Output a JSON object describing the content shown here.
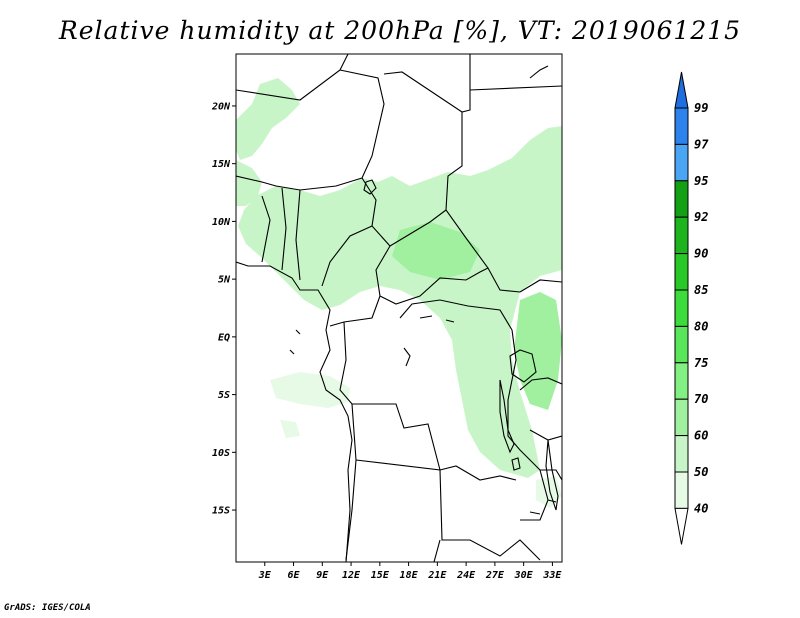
{
  "title": "Relative humidity at 200hPa [%], VT: 2019061215",
  "credit": "GrADS: IGES/COLA",
  "map": {
    "lat_range": [
      -19.5,
      24.5
    ],
    "lon_range": [
      0,
      34
    ],
    "lat_ticks": [
      {
        "value": 20,
        "label": "20N"
      },
      {
        "value": 15,
        "label": "15N"
      },
      {
        "value": 10,
        "label": "10N"
      },
      {
        "value": 5,
        "label": "5N"
      },
      {
        "value": 0,
        "label": "EQ"
      },
      {
        "value": -5,
        "label": "5S"
      },
      {
        "value": -10,
        "label": "10S"
      },
      {
        "value": -15,
        "label": "15S"
      }
    ],
    "lon_ticks": [
      {
        "value": 3,
        "label": "3E"
      },
      {
        "value": 6,
        "label": "6E"
      },
      {
        "value": 9,
        "label": "9E"
      },
      {
        "value": 12,
        "label": "12E"
      },
      {
        "value": 15,
        "label": "15E"
      },
      {
        "value": 18,
        "label": "18E"
      },
      {
        "value": 21,
        "label": "21E"
      },
      {
        "value": 24,
        "label": "24E"
      },
      {
        "value": 27,
        "label": "27E"
      },
      {
        "value": 30,
        "label": "30E"
      },
      {
        "value": 33,
        "label": "33E"
      }
    ]
  },
  "colorbar": {
    "levels": [
      {
        "label": "99",
        "color": "#1e6ee0"
      },
      {
        "label": "97",
        "color": "#2d82eb"
      },
      {
        "label": "95",
        "color": "#4ba5f5"
      },
      {
        "label": "92",
        "color": "#14a014"
      },
      {
        "label": "90",
        "color": "#1eb41e"
      },
      {
        "label": "85",
        "color": "#28c828"
      },
      {
        "label": "80",
        "color": "#3cdc3c"
      },
      {
        "label": "75",
        "color": "#5ae65a"
      },
      {
        "label": "70",
        "color": "#82f082"
      },
      {
        "label": "60",
        "color": "#a0f0a0"
      },
      {
        "label": "50",
        "color": "#c8f5c8"
      },
      {
        "label": "40",
        "color": "#e6fae6"
      }
    ],
    "top_color": "#1e6ee0",
    "bottom_color": "#ffffff"
  },
  "shading": {
    "light_color": "#c8f5c8",
    "mid_color": "#a0f0a0",
    "pale_color": "#e6fae6"
  }
}
